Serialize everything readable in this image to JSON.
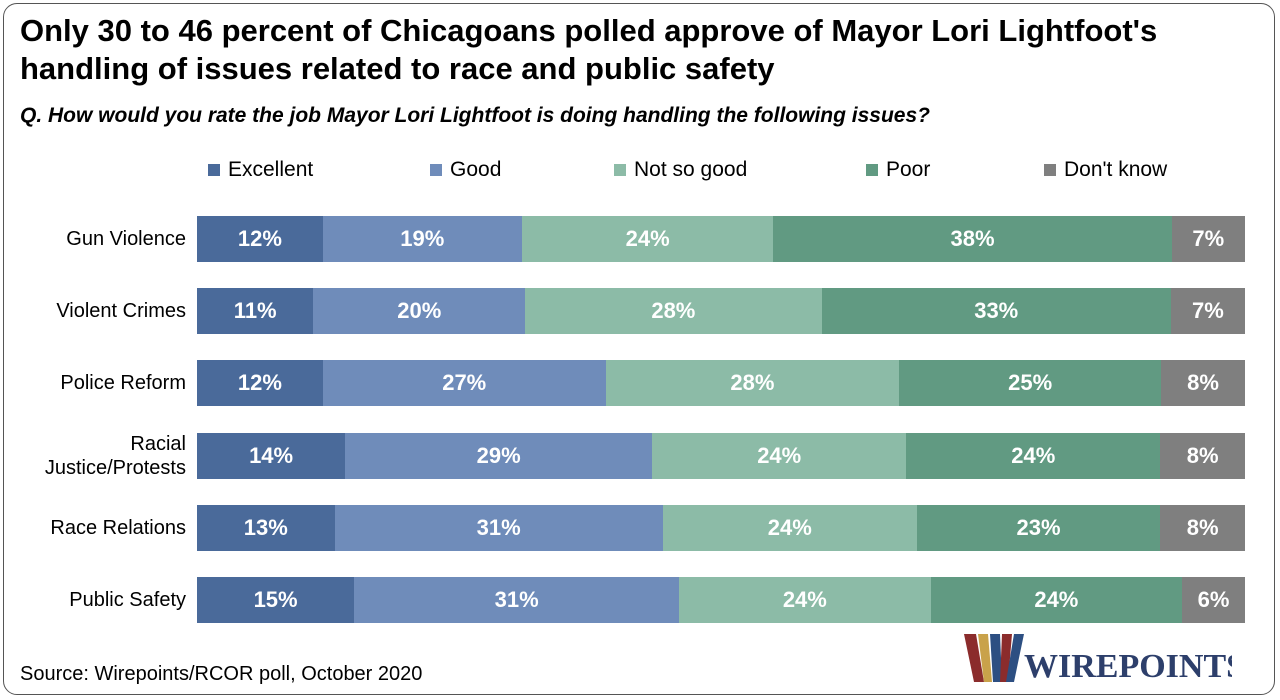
{
  "title": "Only 30 to 46 percent of Chicagoans polled approve of Mayor Lori Lightfoot's handling of issues related to race and public safety",
  "subtitle": "Q. How would you rate the job Mayor Lori Lightfoot is doing handling the following issues?",
  "source": "Source: Wirepoints/RCOR poll, October 2020",
  "logo_text": "WIREPOINTS",
  "chart_data": {
    "type": "bar",
    "orientation": "horizontal",
    "stacked": true,
    "legend_position": "top",
    "grid": false,
    "categories": [
      "Gun Violence",
      "Violent Crimes",
      "Police Reform",
      "Racial Justice/Protests",
      "Race Relations",
      "Public Safety"
    ],
    "category_lines": [
      [
        "Gun Violence"
      ],
      [
        "Violent Crimes"
      ],
      [
        "Police Reform"
      ],
      [
        "Racial",
        "Justice/Protests"
      ],
      [
        "Race Relations"
      ],
      [
        "Public Safety"
      ]
    ],
    "series": [
      {
        "name": "Excellent",
        "color": "#4a6a9a",
        "values": [
          12,
          11,
          12,
          14,
          13,
          15
        ]
      },
      {
        "name": "Good",
        "color": "#6f8cba",
        "values": [
          19,
          20,
          27,
          29,
          31,
          31
        ]
      },
      {
        "name": "Not so good",
        "color": "#8cbba7",
        "values": [
          24,
          28,
          28,
          24,
          24,
          24
        ]
      },
      {
        "name": "Poor",
        "color": "#619a82",
        "values": [
          38,
          33,
          25,
          24,
          23,
          24
        ]
      },
      {
        "name": "Don't know",
        "color": "#7f7f7f",
        "values": [
          7,
          7,
          8,
          8,
          8,
          6
        ]
      }
    ],
    "value_suffix": "%"
  }
}
